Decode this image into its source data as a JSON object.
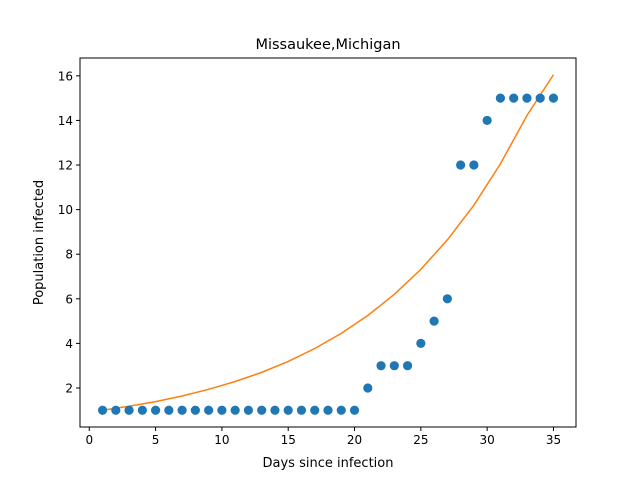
{
  "chart_data": {
    "type": "scatter",
    "title": "Missaukee,Michigan",
    "xlabel": "Days since infection",
    "ylabel": "Population infected",
    "xlim": [
      -0.7,
      36.7
    ],
    "ylim": [
      0.25,
      16.8
    ],
    "xticks": [
      0,
      5,
      10,
      15,
      20,
      25,
      30,
      35
    ],
    "yticks": [
      2,
      4,
      6,
      8,
      10,
      12,
      14,
      16
    ],
    "grid": false,
    "series": [
      {
        "kind": "scatter",
        "color": "#1f77b4",
        "x": [
          1,
          2,
          3,
          4,
          5,
          6,
          7,
          8,
          9,
          10,
          11,
          12,
          13,
          14,
          15,
          16,
          17,
          18,
          19,
          20,
          21,
          22,
          23,
          24,
          25,
          26,
          27,
          28,
          29,
          30,
          31,
          32,
          33,
          34,
          35
        ],
        "y": [
          1,
          1,
          1,
          1,
          1,
          1,
          1,
          1,
          1,
          1,
          1,
          1,
          1,
          1,
          1,
          1,
          1,
          1,
          1,
          1,
          2,
          3,
          3,
          3,
          4,
          5,
          6,
          12,
          12,
          14,
          15,
          15,
          15,
          15,
          15
        ]
      },
      {
        "kind": "line",
        "color": "#ff7f0e",
        "x": [
          1,
          3,
          5,
          7,
          9,
          11,
          13,
          15,
          17,
          19,
          21,
          23,
          25,
          27,
          29,
          31,
          33,
          35
        ],
        "y": [
          1.0,
          1.18,
          1.39,
          1.64,
          1.94,
          2.29,
          2.7,
          3.19,
          3.77,
          4.45,
          5.25,
          6.2,
          7.32,
          8.64,
          10.2,
          12.05,
          14.22,
          16.05
        ]
      }
    ]
  }
}
